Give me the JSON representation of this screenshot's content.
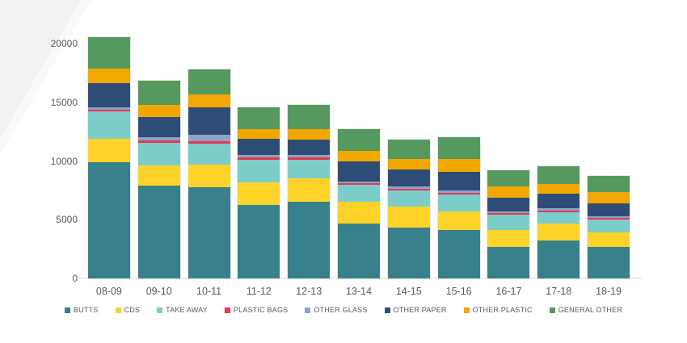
{
  "chart_data": {
    "type": "bar",
    "stacked": true,
    "title": "",
    "xlabel": "",
    "ylabel": "",
    "grid": false,
    "legend_position": "bottom",
    "ylim": [
      0,
      21000
    ],
    "yticks": [
      0,
      5000,
      10000,
      15000,
      20000
    ],
    "ytick_labels": [
      "0",
      "5000",
      "10000",
      "15000",
      "20000"
    ],
    "categories": [
      "08-09",
      "09-10",
      "10-11",
      "11-12",
      "12-13",
      "13-14",
      "14-15",
      "15-16",
      "16-17",
      "17-18",
      "18-19"
    ],
    "series": [
      {
        "name": "BUTTS",
        "color": "#38808B",
        "values": [
          9900,
          7900,
          7750,
          6250,
          6500,
          4650,
          4300,
          4100,
          2650,
          3250,
          2650
        ]
      },
      {
        "name": "CDS",
        "color": "#FDD32A",
        "values": [
          2000,
          1700,
          1950,
          1950,
          2000,
          1850,
          1850,
          1600,
          1450,
          1400,
          1300
        ]
      },
      {
        "name": "TAKE AWAY",
        "color": "#7CCDC9",
        "values": [
          2300,
          1950,
          1800,
          1900,
          1600,
          1450,
          1350,
          1450,
          1300,
          1000,
          1100
        ]
      },
      {
        "name": "PLASTIC BAGS",
        "color": "#E4394B",
        "values": [
          200,
          200,
          200,
          200,
          200,
          150,
          150,
          150,
          150,
          150,
          125
        ]
      },
      {
        "name": "OTHER GLASS",
        "color": "#8CA1CB",
        "values": [
          200,
          250,
          550,
          250,
          200,
          150,
          200,
          200,
          150,
          200,
          125
        ]
      },
      {
        "name": "OTHER PAPER",
        "color": "#2E4D76",
        "values": [
          2050,
          1750,
          2300,
          1350,
          1300,
          1700,
          1450,
          1600,
          1200,
          1200,
          1100
        ]
      },
      {
        "name": "OTHER PLASTIC",
        "color": "#F1A700",
        "values": [
          1250,
          1000,
          1100,
          800,
          950,
          900,
          900,
          1050,
          950,
          850,
          950
        ]
      },
      {
        "name": "GENERAL OTHER",
        "color": "#56995F",
        "values": [
          2650,
          2100,
          2150,
          1900,
          2050,
          1900,
          1600,
          1850,
          1350,
          1500,
          1350
        ]
      }
    ],
    "totals": [
      20550,
      16850,
      17800,
      14600,
      14800,
      12750,
      11800,
      12000,
      9200,
      9550,
      8700
    ]
  },
  "style": {
    "axis_text_color": "#595959",
    "baseline_color": "#d9d9d9",
    "corner_color_outer": "#f8f9f8",
    "corner_color_inner": "#f1f2f1",
    "background": "#ffffff"
  }
}
